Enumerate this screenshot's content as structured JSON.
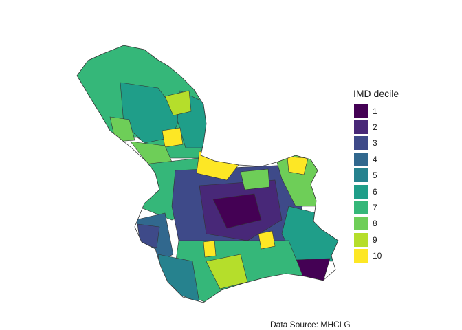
{
  "legend": {
    "title": "IMD decile",
    "items": [
      {
        "label": "1",
        "color": "#440154"
      },
      {
        "label": "2",
        "color": "#482878"
      },
      {
        "label": "3",
        "color": "#3e4a89"
      },
      {
        "label": "4",
        "color": "#31688e"
      },
      {
        "label": "5",
        "color": "#26828e"
      },
      {
        "label": "6",
        "color": "#1f9e89"
      },
      {
        "label": "7",
        "color": "#35b779"
      },
      {
        "label": "8",
        "color": "#6ece58"
      },
      {
        "label": "9",
        "color": "#b5de2b"
      },
      {
        "label": "10",
        "color": "#fde725"
      }
    ]
  },
  "caption": "Data Source: MHCLG",
  "map": {
    "fill_by": "IMD decile",
    "border_color": "#333333"
  }
}
